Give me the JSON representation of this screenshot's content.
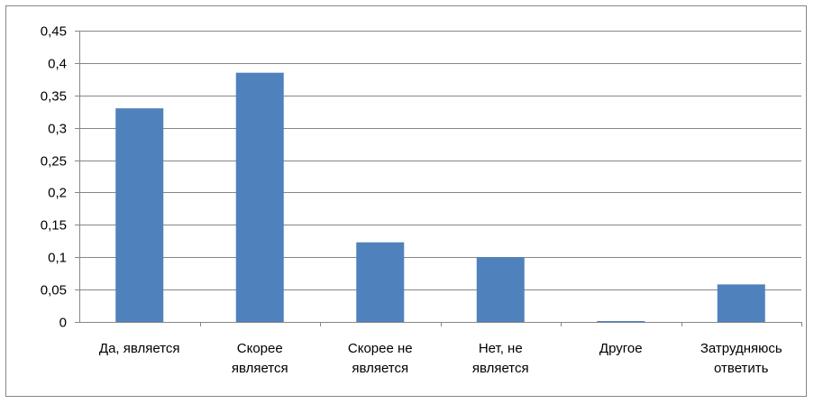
{
  "chart_data": {
    "type": "bar",
    "categories": [
      [
        "Да, является"
      ],
      [
        "Скорее",
        "является"
      ],
      [
        "Скорее не",
        "является"
      ],
      [
        "Нет, не",
        "является"
      ],
      [
        "Другое"
      ],
      [
        "Затрудняюсь",
        "ответить"
      ]
    ],
    "values": [
      0.33,
      0.385,
      0.123,
      0.1,
      0.001,
      0.058
    ],
    "ylim": [
      0,
      0.45
    ],
    "yticks": [
      "0",
      "0,05",
      "0,1",
      "0,15",
      "0,2",
      "0,25",
      "0,3",
      "0,35",
      "0,4",
      "0,45"
    ],
    "ytick_values": [
      0,
      0.05,
      0.1,
      0.15,
      0.2,
      0.25,
      0.3,
      0.35,
      0.4,
      0.45
    ],
    "grid": true,
    "legend": "none",
    "bar_color": "#4F81BD",
    "grid_color": "#868686"
  }
}
